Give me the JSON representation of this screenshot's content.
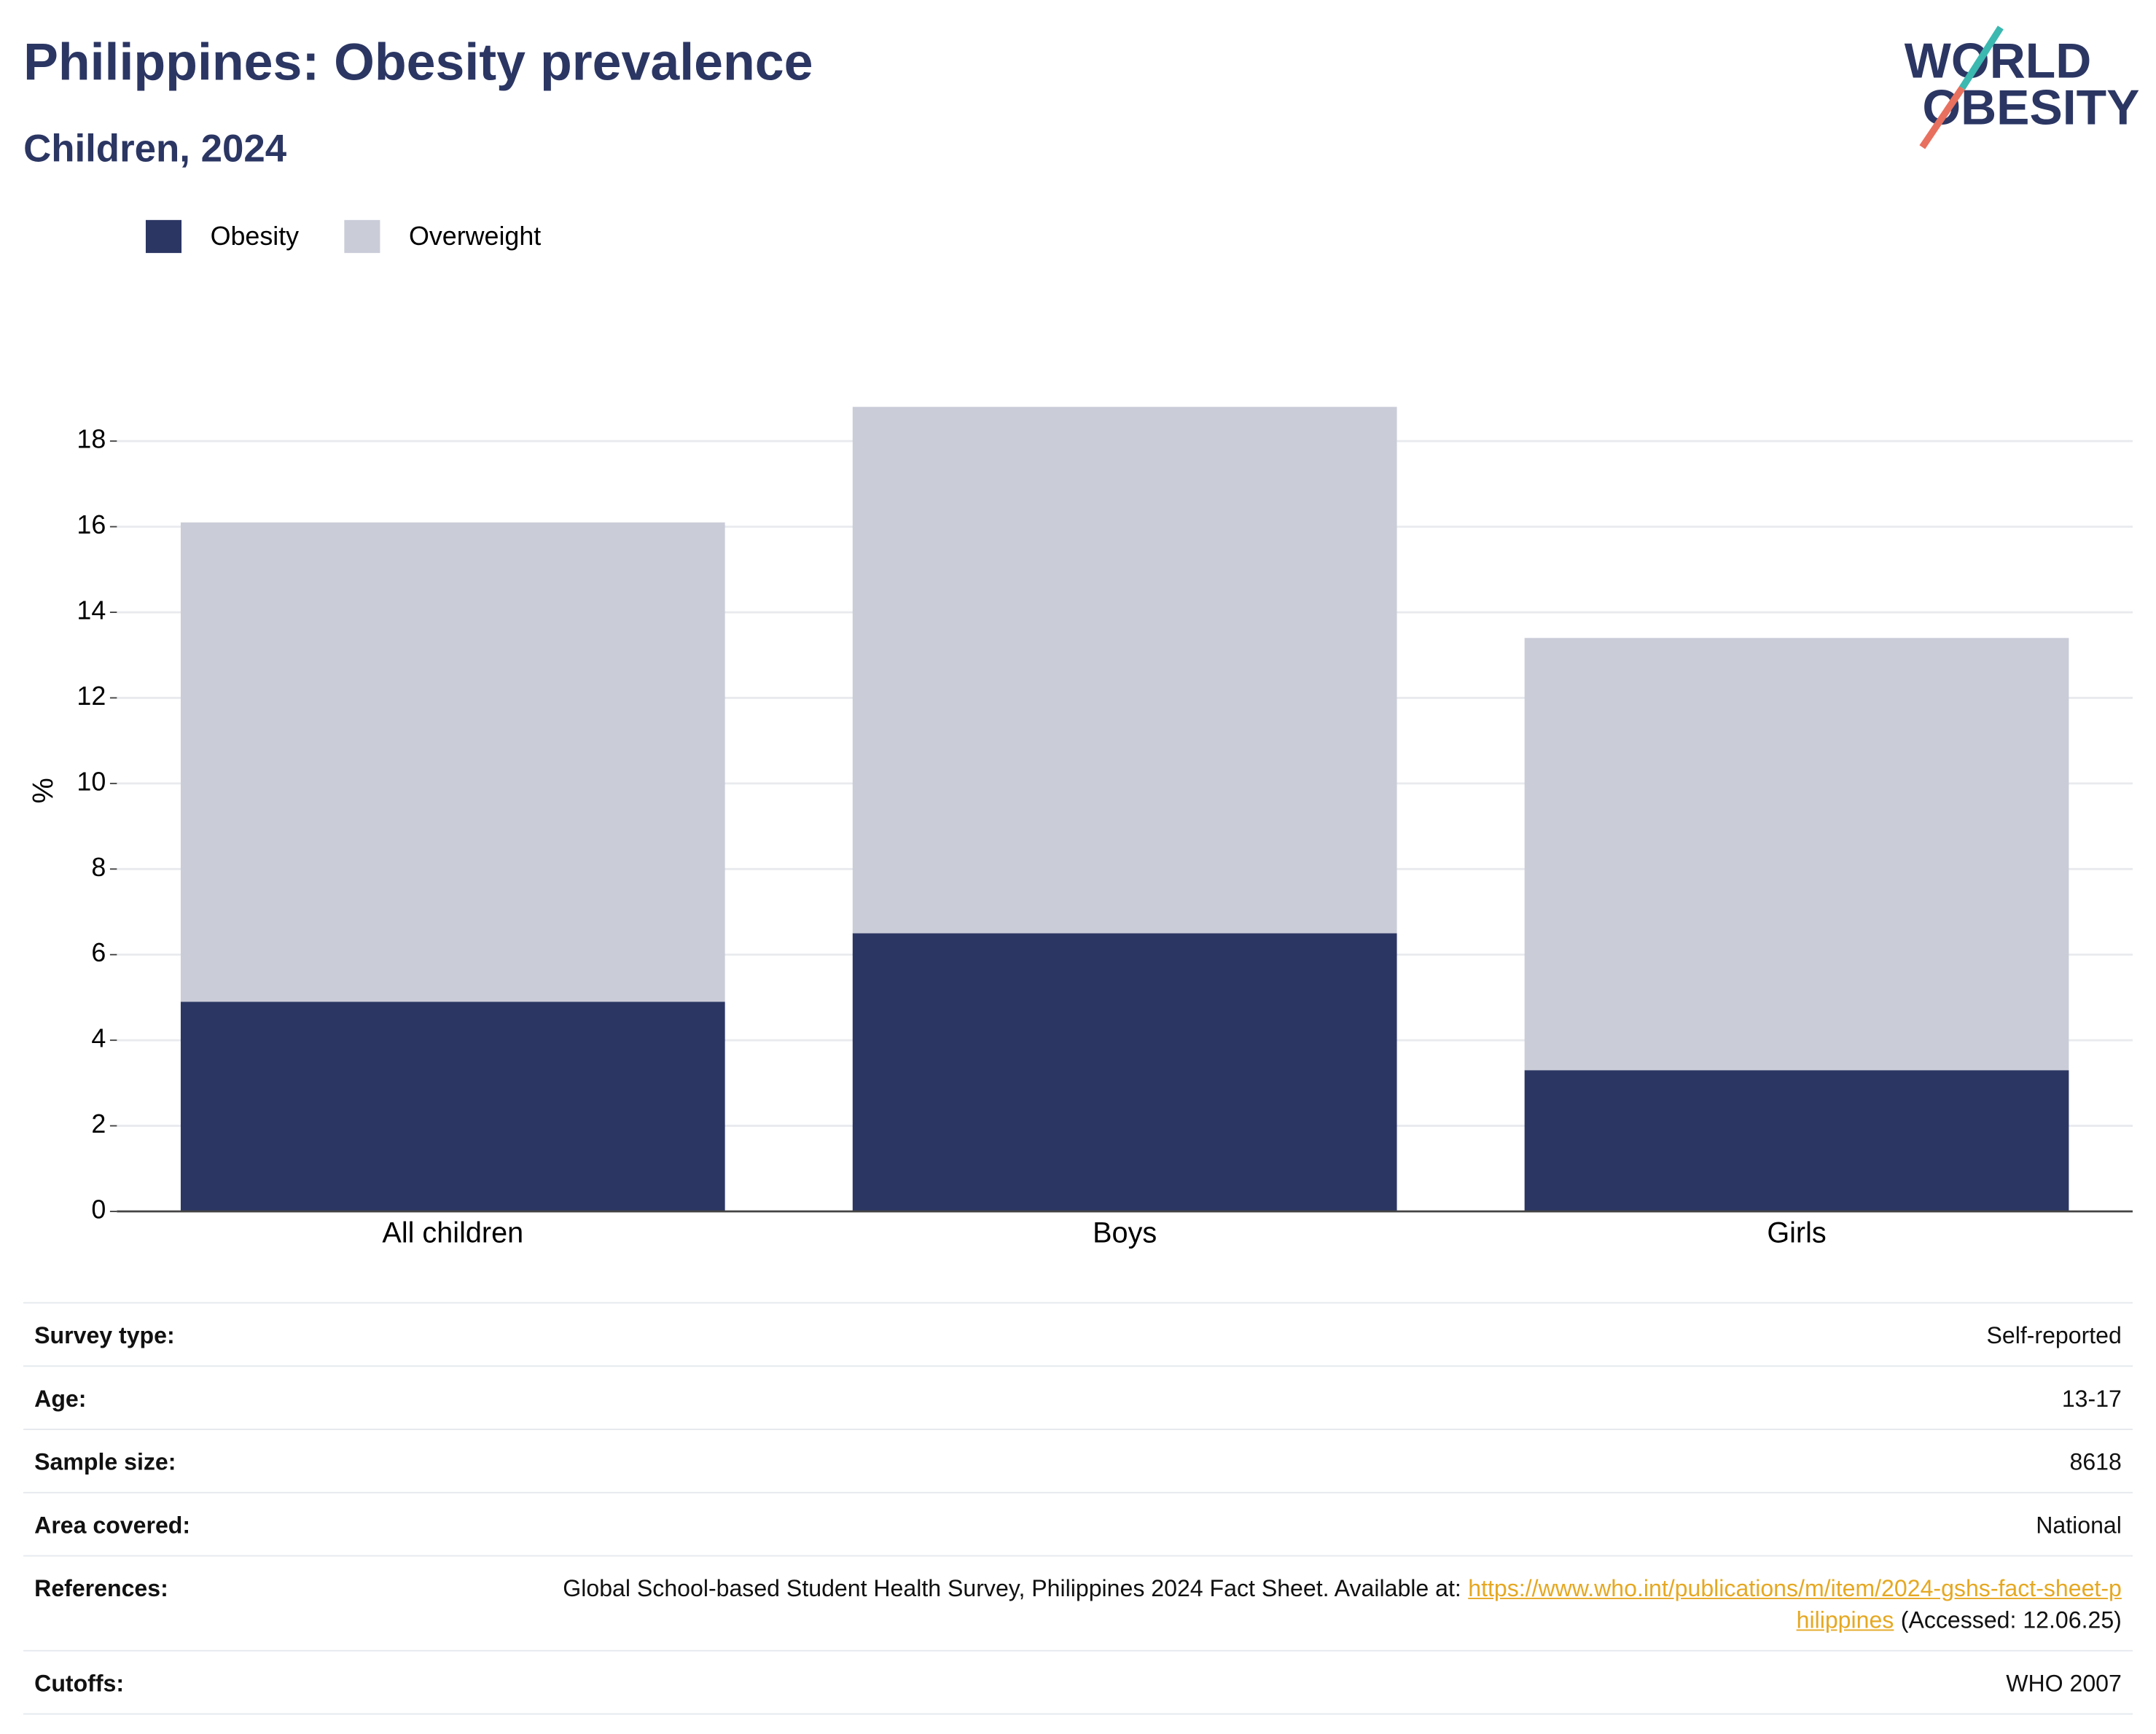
{
  "chart_data": {
    "type": "stacked_bar",
    "title": "Philippines: Obesity prevalence",
    "subtitle": "Children, 2024",
    "y_label": "%",
    "categories": [
      "All children",
      "Boys",
      "Girls"
    ],
    "series": [
      {
        "name": "Obesity",
        "color": "#2b3663",
        "values": [
          4.9,
          6.5,
          3.3
        ]
      },
      {
        "name": "Overweight",
        "color": "#caccd8",
        "values": [
          11.2,
          12.3,
          10.1
        ]
      }
    ],
    "ylim": [
      0,
      19.6
    ],
    "yticks": [
      0,
      2,
      4,
      6,
      8,
      10,
      12,
      14,
      16,
      18
    ],
    "grid": true,
    "legend": "top-left"
  },
  "logo": {
    "line1": "WORLD",
    "line2": "OBESITY"
  },
  "details": {
    "rows": [
      {
        "label": "Survey type:",
        "value": "Self-reported"
      },
      {
        "label": "Age:",
        "value": "13-17"
      },
      {
        "label": "Sample size:",
        "value": "8618"
      },
      {
        "label": "Area covered:",
        "value": "National"
      },
      {
        "label": "References:",
        "value": {
          "text": "Global School-based Student Health Survey, Philippines 2024 Fact Sheet. Available at:",
          "link": "https://www.who.int/publications/m/item/2024-gshs-fact-sheet-philippines",
          "suffix": "(Accessed: 12.06.25)"
        }
      },
      {
        "label": "Cutoffs:",
        "value": "WHO 2007"
      }
    ]
  }
}
